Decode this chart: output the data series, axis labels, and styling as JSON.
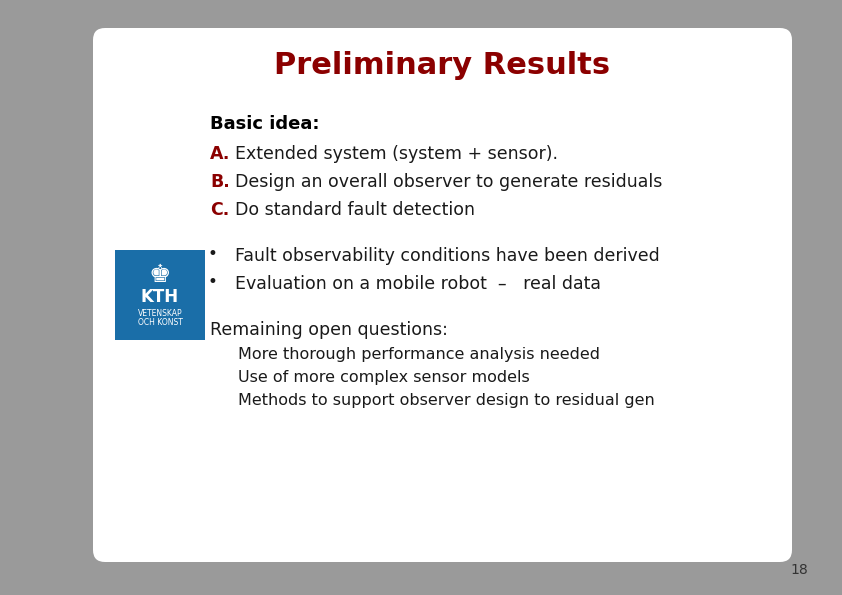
{
  "title": "Preliminary Results",
  "title_color": "#8B0000",
  "title_fontsize": 22,
  "bg_color": "#9A9A9A",
  "page_number": "18",
  "basic_idea_label": "Basic idea:",
  "items_A_label": "A.",
  "items_A_text": "Extended system (system + sensor).",
  "items_B_label": "B.",
  "items_B_text": "Design an overall observer to generate residuals",
  "items_C_label": "C.",
  "items_C_text": "Do standard fault detection",
  "bullet1": "Fault observability conditions have been derived",
  "bullet2": "Evaluation on a mobile robot  –   real data",
  "remaining_header": "Remaining open questions:",
  "remaining1": "More thorough performance analysis needed",
  "remaining2": "Use of more complex sensor models",
  "remaining3": "Methods to support observer design to residual gen",
  "label_color": "#8B0000",
  "text_color": "#1a1a1a",
  "header_text_color": "#000000",
  "kth_blue": "#1A6EA8",
  "white": "#FFFFFF"
}
